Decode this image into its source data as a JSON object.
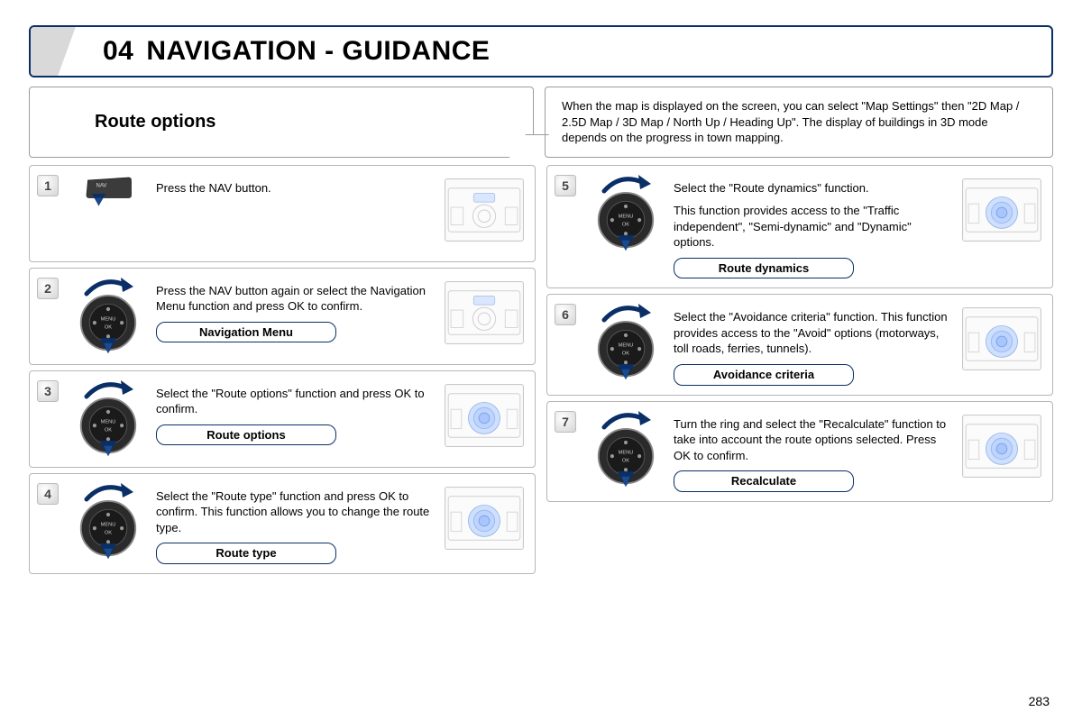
{
  "page": {
    "chapter_num": "04",
    "chapter_title": "NAVIGATION - GUIDANCE",
    "page_number": "283"
  },
  "subhead": {
    "left_title": "Route options",
    "right_text": "When the map is displayed on the screen, you can select \"Map Settings\" then \"2D Map / 2.5D Map / 3D Map / North Up / Heading Up\". The display of buildings in 3D mode depends on the progress in town mapping."
  },
  "colors": {
    "accent": "#0a2f66",
    "border": "#b6b6b6",
    "thumb_line": "#c0c0c0",
    "thumb_highlight": "#a8c5ff"
  },
  "steps_left": [
    {
      "num": "1",
      "icon": "nav",
      "text": "Press the NAV button.",
      "menu": null,
      "thumb": "plain"
    },
    {
      "num": "2",
      "icon": "dial",
      "text": "Press the NAV button again or select the Navigation Menu function and press OK to confirm.",
      "menu": "Navigation Menu",
      "thumb": "plain"
    },
    {
      "num": "3",
      "icon": "dial",
      "text": "Select the \"Route options\" function and press OK to confirm.",
      "menu": "Route options",
      "thumb": "highlight"
    },
    {
      "num": "4",
      "icon": "dial",
      "text": "Select the \"Route type\" function and press OK to confirm. This function allows you to change the route type.",
      "menu": "Route type",
      "thumb": "highlight"
    }
  ],
  "steps_right": [
    {
      "num": "5",
      "icon": "dial",
      "text": "Select the \"Route dynamics\" function.\nThis function provides access to the \"Traffic independent\", \"Semi-dynamic\" and \"Dynamic\" options.",
      "menu": "Route dynamics",
      "thumb": "highlight"
    },
    {
      "num": "6",
      "icon": "dial",
      "text": "Select the \"Avoidance criteria\" function. This function provides access to the \"Avoid\" options (motorways, toll roads, ferries, tunnels).",
      "menu": "Avoidance criteria",
      "thumb": "highlight"
    },
    {
      "num": "7",
      "icon": "dial",
      "text": "Turn the ring and select the \"Recalculate\" function to take into account the route options selected. Press OK to confirm.",
      "menu": "Recalculate",
      "thumb": "highlight"
    }
  ]
}
